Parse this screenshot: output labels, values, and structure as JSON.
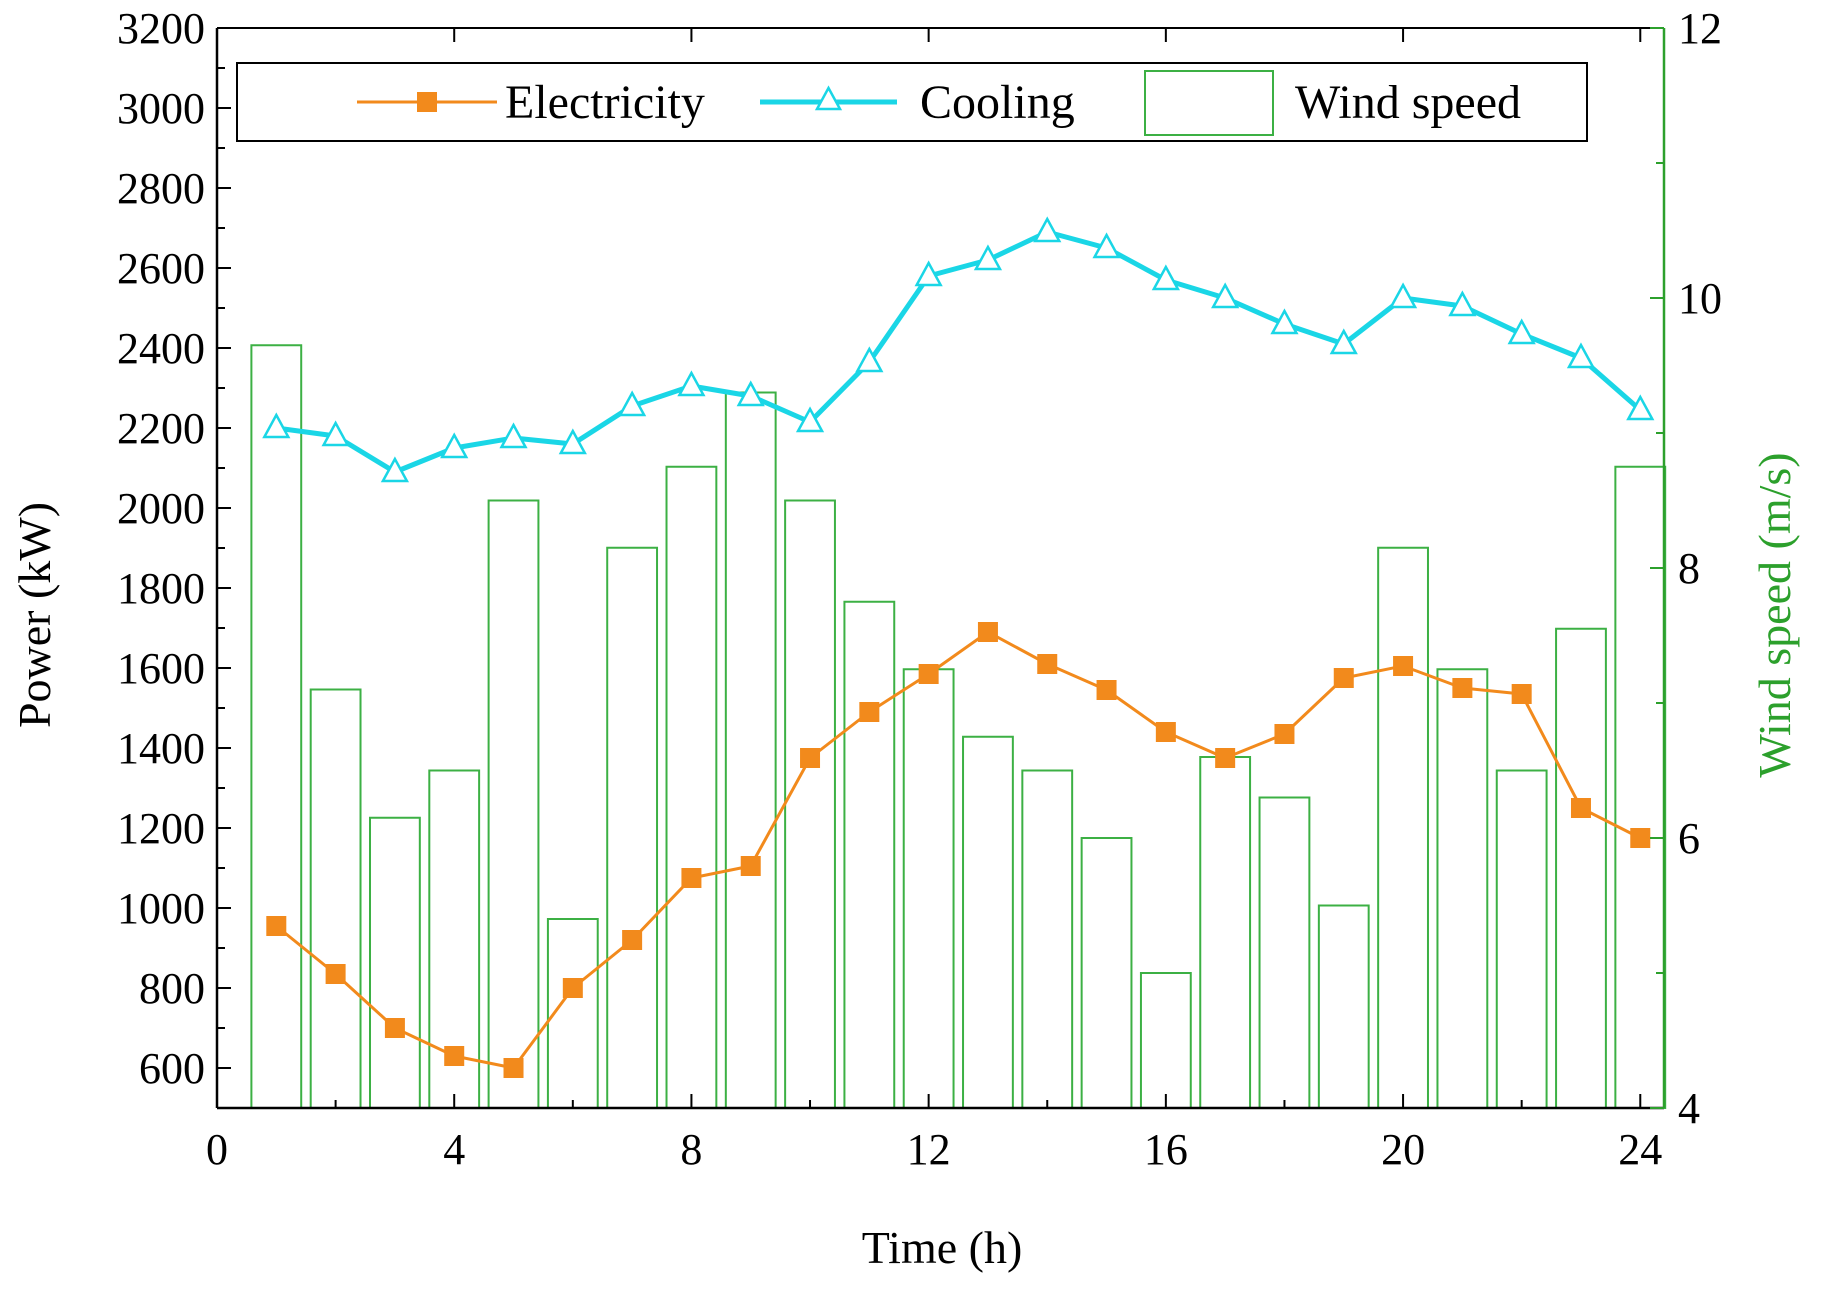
{
  "chart_data": {
    "type": "line",
    "xlabel": "Time (h)",
    "ylabel": "Power (kW)",
    "y2label": "Wind speed (m/s)",
    "xlim": [
      0,
      24.4
    ],
    "ylim": [
      500,
      3200
    ],
    "y2lim": [
      4,
      12
    ],
    "x_ticks": [
      0,
      4,
      8,
      12,
      16,
      20,
      24
    ],
    "y_ticks": [
      600,
      800,
      1000,
      1200,
      1400,
      1600,
      1800,
      2000,
      2200,
      2400,
      2600,
      2800,
      3000,
      3200
    ],
    "y2_ticks": [
      4,
      6,
      8,
      10,
      12
    ],
    "x": [
      1,
      2,
      3,
      4,
      5,
      6,
      7,
      8,
      9,
      10,
      11,
      12,
      13,
      14,
      15,
      16,
      17,
      18,
      19,
      20,
      21,
      22,
      23,
      24
    ],
    "legend_position": "top",
    "grid": false,
    "series": [
      {
        "name": "Electricity",
        "type": "line",
        "marker": "square",
        "axis": "left",
        "color": "#f28a1c",
        "values": [
          955,
          835,
          700,
          630,
          600,
          800,
          920,
          1075,
          1105,
          1375,
          1490,
          1585,
          1690,
          1610,
          1545,
          1440,
          1375,
          1435,
          1575,
          1605,
          1550,
          1535,
          1250,
          1175
        ]
      },
      {
        "name": "Cooling",
        "type": "line",
        "marker": "triangle-open",
        "axis": "left",
        "color": "#1ad6e6",
        "values": [
          2200,
          2180,
          2090,
          2150,
          2175,
          2160,
          2255,
          2305,
          2280,
          2215,
          2365,
          2580,
          2620,
          2690,
          2650,
          2570,
          2525,
          2460,
          2410,
          2525,
          2505,
          2435,
          2375,
          2245
        ]
      },
      {
        "name": "Wind speed",
        "type": "bar",
        "axis": "right",
        "color": "#3cb044",
        "values": [
          9.65,
          7.1,
          6.15,
          6.5,
          8.5,
          5.4,
          8.15,
          8.75,
          9.3,
          8.5,
          7.75,
          7.25,
          6.75,
          6.5,
          6.0,
          5.0,
          6.6,
          6.3,
          5.5,
          8.15,
          7.25,
          6.5,
          7.55,
          8.75
        ]
      }
    ]
  }
}
